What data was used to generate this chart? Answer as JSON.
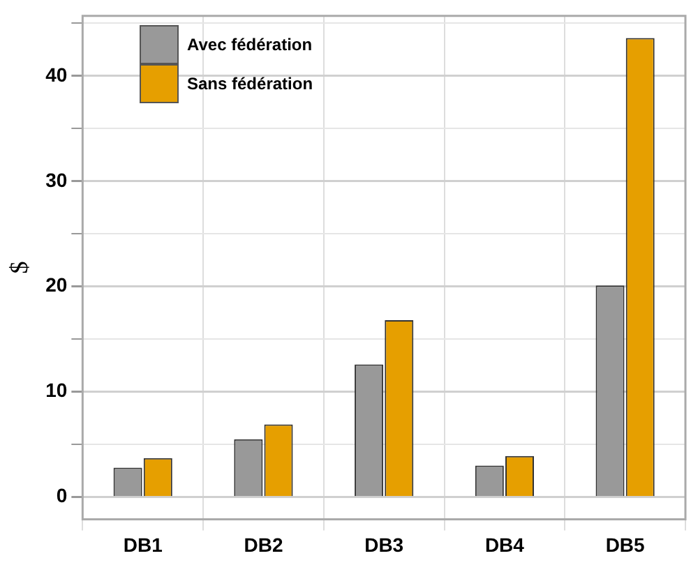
{
  "chart_data": {
    "type": "bar",
    "ylabel": "$",
    "categories": [
      "DB1",
      "DB2",
      "DB3",
      "DB4",
      "DB5"
    ],
    "series": [
      {
        "name": "Avec fédération",
        "color": "#999999",
        "values": [
          2.8,
          5.5,
          12.6,
          3.0,
          20.1
        ]
      },
      {
        "name": "Sans fédération",
        "color": "#e69f00",
        "values": [
          3.7,
          6.9,
          16.8,
          3.9,
          43.6
        ]
      }
    ],
    "ylim": [
      -2.1,
      45.7
    ],
    "yticks": [
      0,
      {
        "value": 5,
        "label": null
      },
      10,
      {
        "value": 15,
        "label": null
      },
      20,
      {
        "value": 25,
        "label": null
      },
      30,
      {
        "value": 35,
        "label": null
      },
      40,
      {
        "value": 45,
        "label": null
      }
    ],
    "grid": true,
    "legend": "top left"
  }
}
